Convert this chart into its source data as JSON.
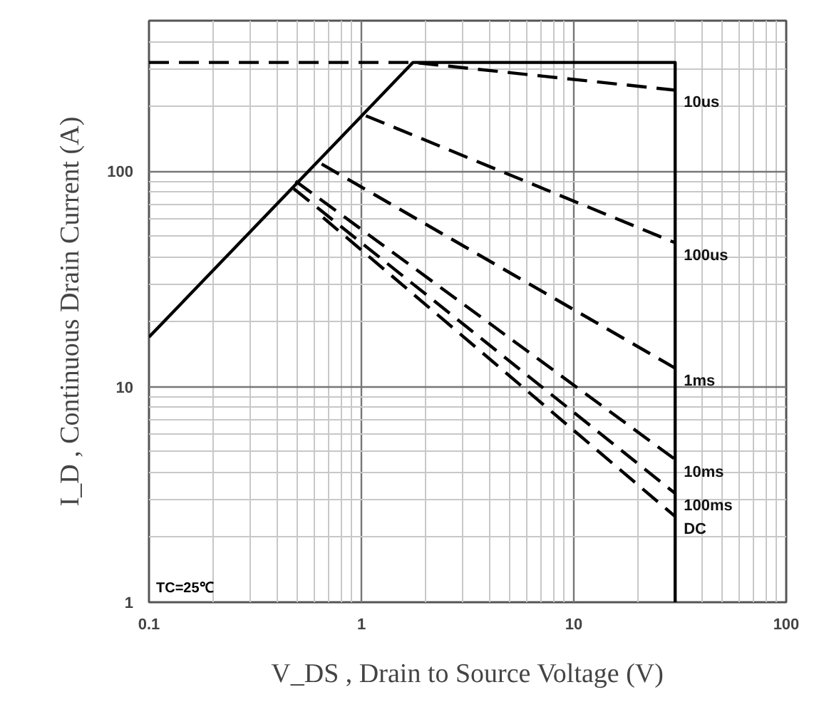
{
  "chart_data": {
    "type": "line",
    "xlabel": "V_DS , Drain to Source Voltage (V)",
    "ylabel": "I_D , Continuous Drain Current (A)",
    "log": "xy",
    "grid": true,
    "xlim": [
      0.1,
      100
    ],
    "ylim": [
      1,
      500
    ],
    "xticks": [
      0.1,
      1,
      10,
      100
    ],
    "yticks": [
      1,
      10,
      100
    ],
    "annotations": [
      "TC=25℃"
    ],
    "series": [
      {
        "color": "#000000",
        "line_style": "solid",
        "x": [
          0.1,
          1.75,
          30,
          30
        ],
        "values": [
          17,
          320,
          320,
          1
        ]
      },
      {
        "name": "10us",
        "color": "#000000",
        "line_style": "dashed",
        "x": [
          0.1,
          1.75,
          30
        ],
        "values": [
          320,
          320,
          238
        ]
      },
      {
        "name": "100us",
        "color": "#000000",
        "line_style": "dashed",
        "x": [
          1.05,
          30
        ],
        "values": [
          181,
          46.6
        ]
      },
      {
        "name": "1ms",
        "color": "#000000",
        "line_style": "dashed",
        "x": [
          0.65,
          30
        ],
        "values": [
          108,
          12.2
        ]
      },
      {
        "name": "10ms",
        "color": "#000000",
        "line_style": "dashed",
        "x": [
          0.49,
          30
        ],
        "values": [
          90,
          4.6
        ]
      },
      {
        "name": "100ms",
        "color": "#000000",
        "line_style": "dashed",
        "x": [
          0.48,
          30
        ],
        "values": [
          83,
          3.2
        ]
      },
      {
        "name": "DC",
        "color": "#000000",
        "line_style": "dashed",
        "x": [
          0.66,
          30
        ],
        "values": [
          61,
          2.5
        ]
      }
    ]
  }
}
